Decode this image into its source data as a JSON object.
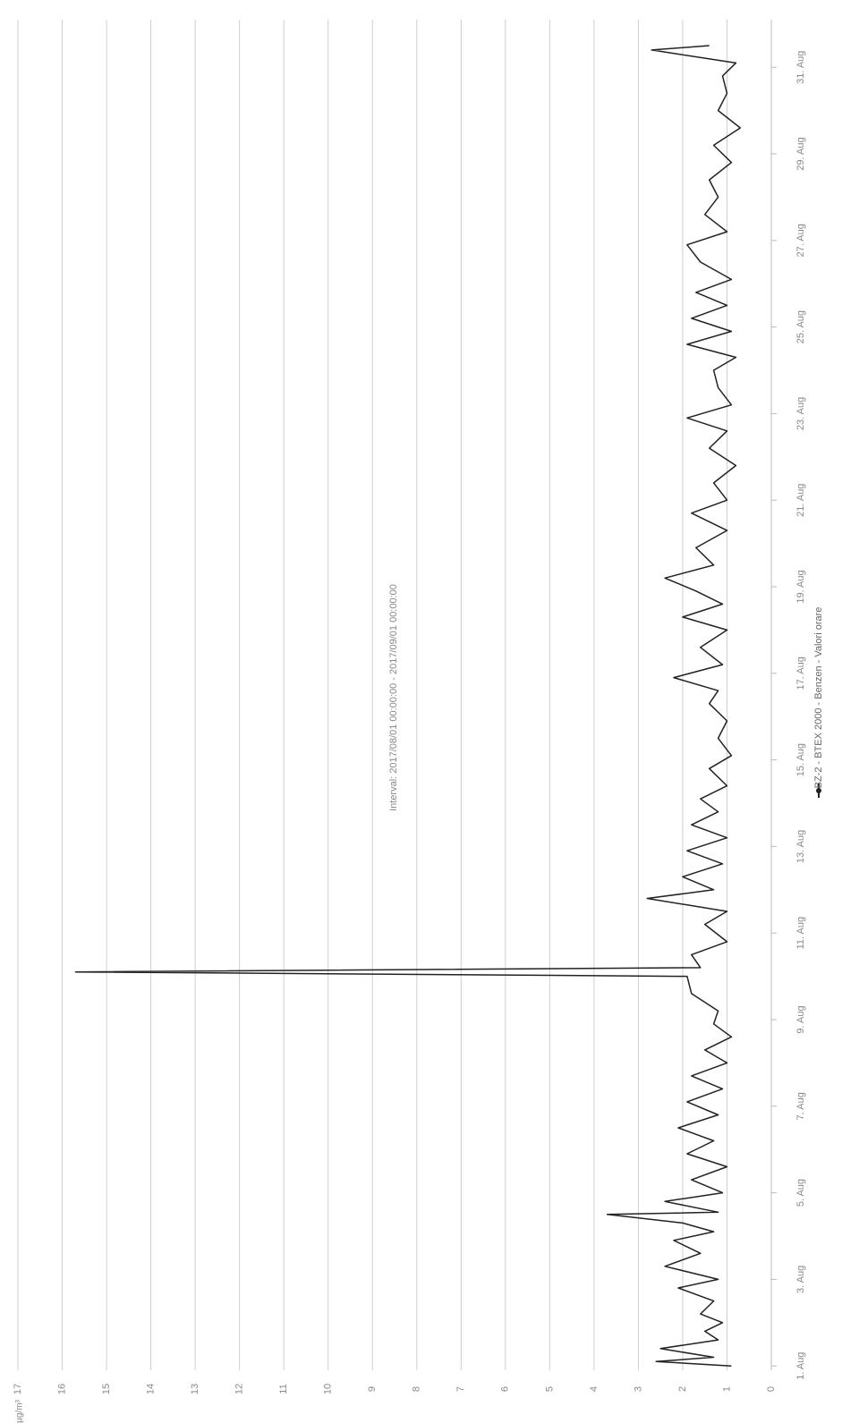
{
  "chart_data": {
    "type": "line",
    "title": "Interval: 2017/08/01 00:00:00 - 2017/09/01 00:00:00",
    "y_axis_label": "µg/m³",
    "x": [
      1.0,
      1.1,
      1.2,
      1.4,
      1.6,
      1.8,
      2.0,
      2.2,
      2.5,
      2.8,
      3.0,
      3.3,
      3.6,
      3.9,
      4.1,
      4.3,
      4.5,
      4.55,
      4.8,
      5.0,
      5.3,
      5.6,
      5.9,
      6.2,
      6.5,
      6.8,
      7.1,
      7.4,
      7.7,
      8.0,
      8.3,
      8.6,
      8.9,
      9.2,
      9.6,
      10.0,
      10.1,
      10.2,
      10.5,
      10.8,
      11.2,
      11.5,
      11.8,
      12.0,
      12.3,
      12.6,
      12.9,
      13.2,
      13.5,
      13.8,
      14.1,
      14.4,
      14.8,
      15.1,
      15.5,
      15.9,
      16.3,
      16.6,
      16.9,
      17.2,
      17.6,
      18.0,
      18.3,
      18.6,
      18.9,
      19.2,
      19.5,
      19.9,
      20.3,
      20.7,
      21.0,
      21.4,
      21.8,
      22.2,
      22.6,
      22.9,
      23.2,
      23.6,
      24.0,
      24.3,
      24.6,
      24.9,
      25.2,
      25.5,
      25.8,
      26.1,
      26.5,
      26.9,
      27.2,
      27.6,
      28.0,
      28.4,
      28.8,
      29.2,
      29.6,
      30.0,
      30.4,
      30.8,
      31.1,
      31.4,
      31.5
    ],
    "series": [
      {
        "name": "BZ-2 - BTEX 2000 - Benzen - Valori orare",
        "color": "#222222",
        "values": [
          0.9,
          2.6,
          1.3,
          2.5,
          1.2,
          1.5,
          1.1,
          1.6,
          1.3,
          2.1,
          1.2,
          2.4,
          1.6,
          2.2,
          1.3,
          2.0,
          3.7,
          1.2,
          2.4,
          1.1,
          1.8,
          1.0,
          1.9,
          1.3,
          2.1,
          1.2,
          1.9,
          1.1,
          1.8,
          1.0,
          1.5,
          0.9,
          1.3,
          1.2,
          1.8,
          1.9,
          15.7,
          1.6,
          1.8,
          1.0,
          1.5,
          1.0,
          2.8,
          1.3,
          2.0,
          1.1,
          1.9,
          1.0,
          1.8,
          1.2,
          1.6,
          1.0,
          1.4,
          0.9,
          1.2,
          1.0,
          1.4,
          1.2,
          2.2,
          1.1,
          1.6,
          1.0,
          2.0,
          1.1,
          1.7,
          2.4,
          1.3,
          1.7,
          1.0,
          1.8,
          1.0,
          1.3,
          0.8,
          1.4,
          1.0,
          1.9,
          0.9,
          1.2,
          1.3,
          0.8,
          1.9,
          0.9,
          1.8,
          1.0,
          1.7,
          0.9,
          1.6,
          1.9,
          1.0,
          1.5,
          1.2,
          1.4,
          0.9,
          1.3,
          0.7,
          1.2,
          1.0,
          1.1,
          0.8,
          2.7,
          1.4
        ]
      }
    ],
    "xlim": [
      0.9,
      32.1
    ],
    "xticks": [
      {
        "value": 1,
        "label": "1. Aug"
      },
      {
        "value": 3,
        "label": "3. Aug"
      },
      {
        "value": 5,
        "label": "5. Aug"
      },
      {
        "value": 7,
        "label": "7. Aug"
      },
      {
        "value": 9,
        "label": "9. Aug"
      },
      {
        "value": 11,
        "label": "11. Aug"
      },
      {
        "value": 13,
        "label": "13. Aug"
      },
      {
        "value": 15,
        "label": "15. Aug"
      },
      {
        "value": 17,
        "label": "17. Aug"
      },
      {
        "value": 19,
        "label": "19. Aug"
      },
      {
        "value": 21,
        "label": "21. Aug"
      },
      {
        "value": 23,
        "label": "23. Aug"
      },
      {
        "value": 25,
        "label": "25. Aug"
      },
      {
        "value": 27,
        "label": "27. Aug"
      },
      {
        "value": 29,
        "label": "29. Aug"
      },
      {
        "value": 31,
        "label": "31. Aug"
      }
    ],
    "ylim": [
      0,
      17
    ],
    "yticks": [
      0,
      1,
      2,
      3,
      4,
      5,
      6,
      7,
      8,
      9,
      10,
      11,
      12,
      13,
      14,
      15,
      16,
      17
    ],
    "grid": true
  }
}
